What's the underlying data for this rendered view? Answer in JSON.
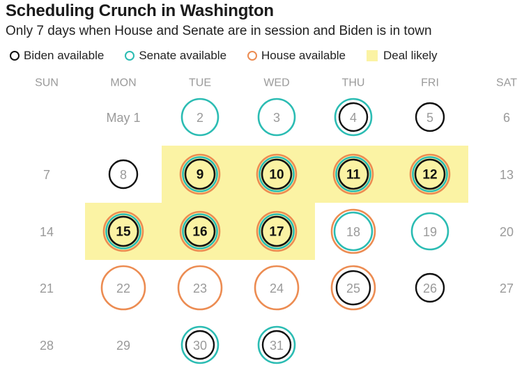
{
  "title": "Scheduling Crunch in Washington",
  "subtitle": "Only 7 days when House and Senate are in session and Biden is in town",
  "colors": {
    "biden": "#111111",
    "senate": "#2bbcb3",
    "house": "#ec8c52",
    "deal": "#fbf3a4",
    "muted_text": "#9a9a9a"
  },
  "legend": [
    {
      "key": "biden",
      "label": "Biden available",
      "marker": "ring"
    },
    {
      "key": "senate",
      "label": "Senate available",
      "marker": "ring"
    },
    {
      "key": "house",
      "label": "House available",
      "marker": "ring"
    },
    {
      "key": "deal",
      "label": "Deal likely",
      "marker": "square"
    }
  ],
  "chart_data": {
    "type": "calendar",
    "weekdays": [
      "SUN",
      "MON",
      "TUE",
      "WED",
      "THU",
      "FRI",
      "SAT"
    ],
    "weeks": [
      [
        null,
        "May 1",
        2,
        3,
        4,
        5,
        6
      ],
      [
        7,
        8,
        9,
        10,
        11,
        12,
        13
      ],
      [
        14,
        15,
        16,
        17,
        18,
        19,
        20
      ],
      [
        21,
        22,
        23,
        24,
        25,
        26,
        27
      ],
      [
        28,
        29,
        30,
        31,
        null,
        null,
        null
      ]
    ],
    "days": {
      "2": {
        "biden": false,
        "senate": true,
        "house": false
      },
      "3": {
        "biden": false,
        "senate": true,
        "house": false
      },
      "4": {
        "biden": true,
        "senate": true,
        "house": false
      },
      "5": {
        "biden": true,
        "senate": false,
        "house": false
      },
      "8": {
        "biden": true,
        "senate": false,
        "house": false
      },
      "9": {
        "biden": true,
        "senate": true,
        "house": true
      },
      "10": {
        "biden": true,
        "senate": true,
        "house": true
      },
      "11": {
        "biden": true,
        "senate": true,
        "house": true
      },
      "12": {
        "biden": true,
        "senate": true,
        "house": true
      },
      "15": {
        "biden": true,
        "senate": true,
        "house": true
      },
      "16": {
        "biden": true,
        "senate": true,
        "house": true
      },
      "17": {
        "biden": true,
        "senate": true,
        "house": true
      },
      "18": {
        "biden": false,
        "senate": true,
        "house": true
      },
      "19": {
        "biden": false,
        "senate": true,
        "house": false
      },
      "22": {
        "biden": false,
        "senate": false,
        "house": true
      },
      "23": {
        "biden": false,
        "senate": false,
        "house": true
      },
      "24": {
        "biden": false,
        "senate": false,
        "house": true
      },
      "25": {
        "biden": true,
        "senate": false,
        "house": true
      },
      "26": {
        "biden": true,
        "senate": false,
        "house": false
      },
      "30": {
        "biden": true,
        "senate": true,
        "house": false
      },
      "31": {
        "biden": true,
        "senate": true,
        "house": false
      }
    },
    "deal_likely_days": [
      9,
      10,
      11,
      12,
      15,
      16,
      17
    ]
  }
}
